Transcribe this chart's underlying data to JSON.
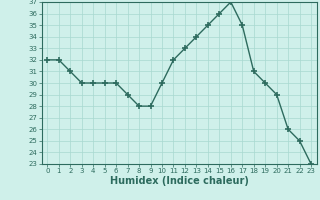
{
  "x": [
    0,
    1,
    2,
    3,
    4,
    5,
    6,
    7,
    8,
    9,
    10,
    11,
    12,
    13,
    14,
    15,
    16,
    17,
    18,
    19,
    20,
    21,
    22,
    23
  ],
  "y": [
    32,
    32,
    31,
    30,
    30,
    30,
    30,
    29,
    28,
    28,
    30,
    32,
    33,
    34,
    35,
    36,
    37,
    35,
    31,
    30,
    29,
    26,
    25,
    23
  ],
  "line_color": "#2d6b5e",
  "marker": "+",
  "markersize": 4,
  "markeredgewidth": 1.2,
  "linewidth": 1.0,
  "bg_color": "#cff0ea",
  "grid_color": "#a8d8d0",
  "xlabel": "Humidex (Indice chaleur)",
  "xlabel_fontsize": 7,
  "ylim": [
    23,
    37
  ],
  "xlim": [
    -0.5,
    23.5
  ],
  "yticks": [
    23,
    24,
    25,
    26,
    27,
    28,
    29,
    30,
    31,
    32,
    33,
    34,
    35,
    36,
    37
  ],
  "xticks": [
    0,
    1,
    2,
    3,
    4,
    5,
    6,
    7,
    8,
    9,
    10,
    11,
    12,
    13,
    14,
    15,
    16,
    17,
    18,
    19,
    20,
    21,
    22,
    23
  ],
  "tick_fontsize": 5,
  "tick_color": "#2d6b5e",
  "spine_color": "#2d6b5e"
}
